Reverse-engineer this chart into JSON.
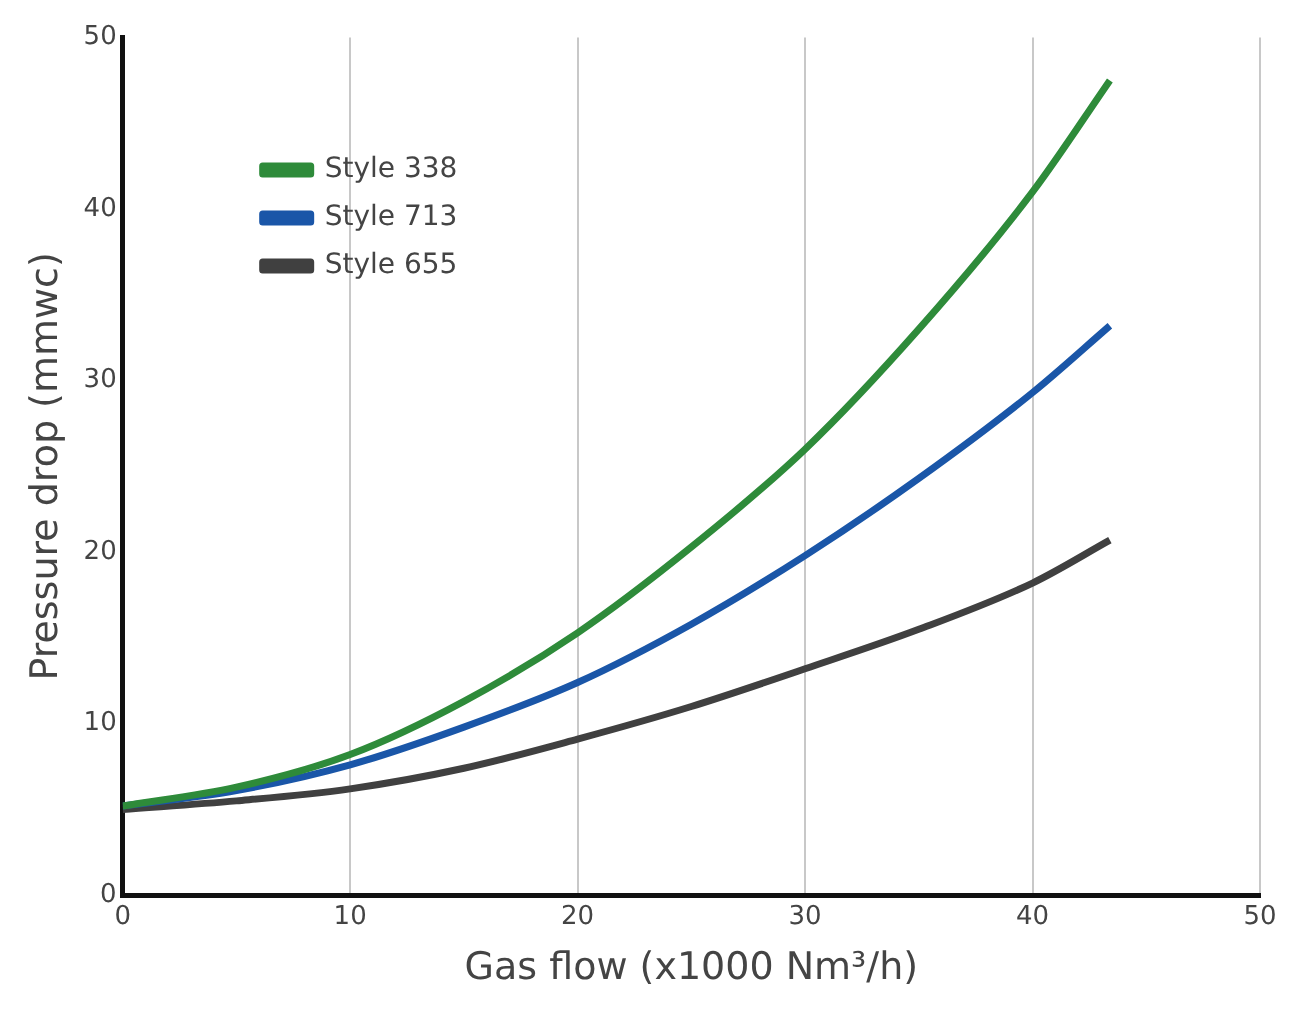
{
  "chart_data": {
    "type": "line",
    "xlabel": "Gas flow (x1000 Nm³/h)",
    "ylabel": "Pressure drop (mmwc)",
    "xlim": [
      0,
      50
    ],
    "xticks": [
      0,
      10,
      20,
      30,
      40,
      50
    ],
    "ylim": [
      0,
      50
    ],
    "yticks": [
      0,
      10,
      20,
      30,
      40,
      50
    ],
    "grid": "x",
    "legend": "top left",
    "marker": "none",
    "line_style": "solid",
    "series": [
      {
        "name": "Style 338",
        "color": "#2e8b3a",
        "x": [
          0,
          5,
          10,
          15,
          20,
          25,
          30,
          35,
          40,
          43.4
        ],
        "values": [
          5.2,
          6.3,
          8.2,
          11.3,
          15.3,
          20.3,
          26,
          33,
          41,
          47.5
        ]
      },
      {
        "name": "Style 713",
        "color": "#1a56a8",
        "x": [
          0,
          5,
          10,
          15,
          20,
          25,
          30,
          35,
          40,
          43.4
        ],
        "values": [
          5.2,
          6.1,
          7.6,
          9.8,
          12.4,
          15.8,
          19.8,
          24.3,
          29.3,
          33.2
        ]
      },
      {
        "name": "Style 655",
        "color": "#404040",
        "x": [
          0,
          5,
          10,
          15,
          20,
          25,
          30,
          35,
          40,
          43.4
        ],
        "values": [
          5,
          5.5,
          6.2,
          7.4,
          9.1,
          11,
          13.2,
          15.5,
          18.2,
          20.7
        ]
      }
    ]
  }
}
